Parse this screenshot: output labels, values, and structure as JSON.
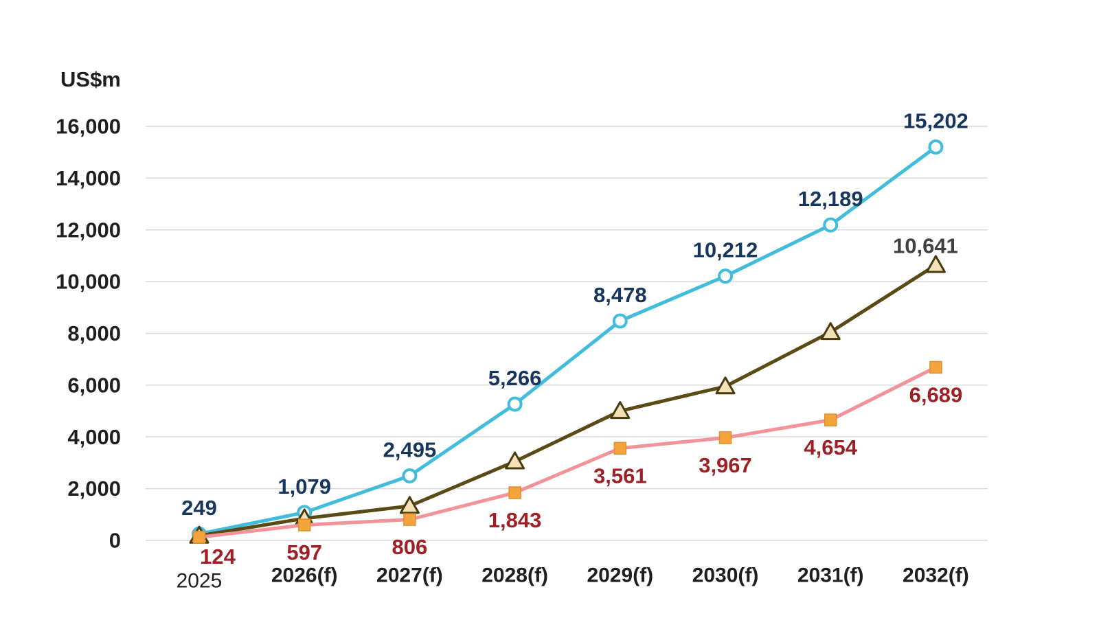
{
  "chart_data": {
    "type": "line",
    "title": "",
    "ylabel": "US$m",
    "xlabel": "",
    "legend": "none",
    "grid": true,
    "ylim": [
      0,
      16000
    ],
    "y_tick_step": 2000,
    "y_ticks": [
      "0",
      "2,000",
      "4,000",
      "6,000",
      "8,000",
      "10,000",
      "12,000",
      "14,000",
      "16,000"
    ],
    "categories": [
      "2025",
      "2026(f)",
      "2027(f)",
      "2028(f)",
      "2029(f)",
      "2030(f)",
      "2031(f)",
      "2032(f)"
    ],
    "series": [
      {
        "name": "series-circle-markers",
        "marker": "circle-open",
        "line_color": "#41BCDB",
        "marker_fill": "#ffffff",
        "marker_stroke": "#41BCDB",
        "label_color": "#17365D",
        "values": [
          249,
          1079,
          2495,
          5266,
          8478,
          10212,
          12189,
          15202
        ],
        "labels": [
          "249",
          "1,079",
          "2,495",
          "5,266",
          "8,478",
          "10,212",
          "12,189",
          "15,202"
        ]
      },
      {
        "name": "series-triangle-markers",
        "marker": "triangle",
        "line_color": "#5A4A14",
        "marker_fill": "#F5E1B7",
        "marker_stroke": "#463A0E",
        "label_color": "#404040",
        "values": [
          180,
          850,
          1330,
          3050,
          5000,
          5950,
          8050,
          10641
        ],
        "values_note": "only the 2032(f) point is labeled in the chart (10,641); earlier points unlabeled, values estimated from plot",
        "labels": [
          "",
          "",
          "",
          "",
          "",
          "",
          "",
          "10,641"
        ]
      },
      {
        "name": "series-square-markers",
        "marker": "square",
        "line_color": "#F2939A",
        "marker_fill": "#F4A43C",
        "marker_stroke": "#E18E2E",
        "label_color": "#9E2025",
        "values": [
          124,
          597,
          806,
          1843,
          3561,
          3967,
          4654,
          6689
        ],
        "labels": [
          "124",
          "597",
          "806",
          "1,843",
          "3,561",
          "3,967",
          "4,654",
          "6,689"
        ]
      }
    ],
    "colors": {
      "gridline": "#D9D9D9",
      "axis_text": "#1f1f1f",
      "background": "#ffffff"
    }
  }
}
